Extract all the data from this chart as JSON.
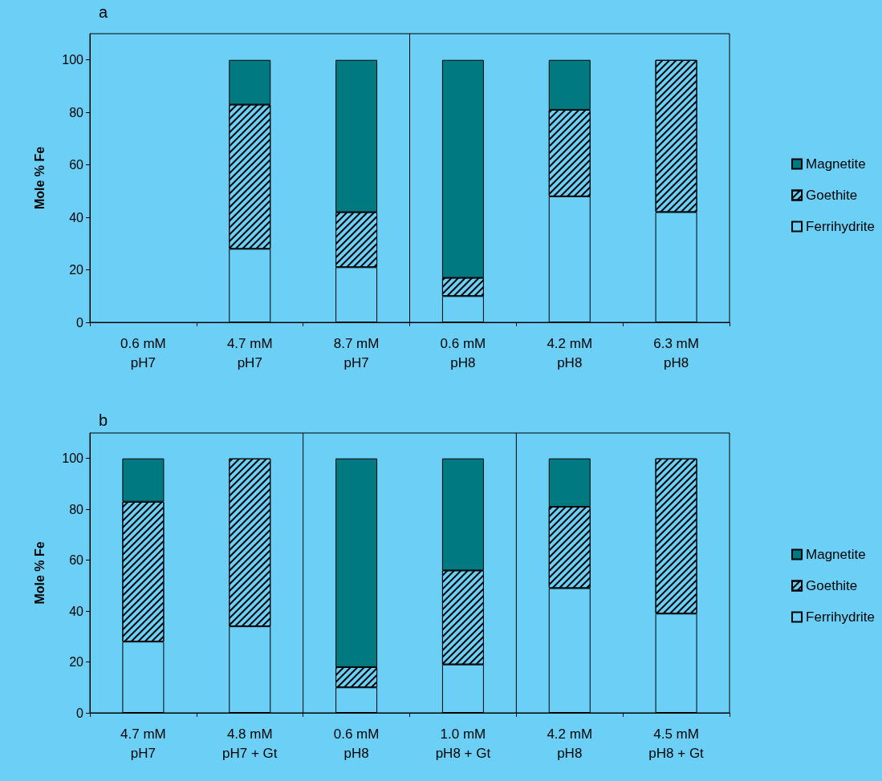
{
  "chart_data": [
    {
      "type": "bar",
      "title": "a",
      "ylabel": "Mole % Fe",
      "stacked": true,
      "legend": "right",
      "ylim": [
        0,
        110
      ],
      "yticks": [
        0,
        20,
        40,
        60,
        80,
        100
      ],
      "categories": [
        "0.6 mM\npH7",
        "4.7 mM\npH7",
        "8.7 mM\npH7",
        "0.6 mM\npH8",
        "4.2 mM\npH8",
        "6.3 mM\npH8"
      ],
      "series": [
        {
          "name": "Ferrihydrite",
          "color": "#6ccff6",
          "values": [
            0,
            28,
            21,
            10,
            48,
            42
          ]
        },
        {
          "name": "Goethite",
          "color": "#6ccff6",
          "values": [
            0,
            55,
            21,
            7,
            33,
            58
          ]
        },
        {
          "name": "Magnetite",
          "color": "#007a80",
          "values": [
            0,
            17,
            58,
            83,
            19,
            0
          ]
        }
      ]
    },
    {
      "type": "bar",
      "title": "b",
      "ylabel": "Mole % Fe",
      "stacked": true,
      "legend": "right",
      "ylim": [
        0,
        110
      ],
      "yticks": [
        0,
        20,
        40,
        60,
        80,
        100
      ],
      "categories": [
        "4.7 mM\npH7",
        "4.8 mM\npH7 + Gt",
        "0.6 mM\npH8",
        "1.0 mM\npH8 + Gt",
        "4.2 mM\npH8",
        "4.5 mM\npH8 + Gt"
      ],
      "series": [
        {
          "name": "Ferrihydrite",
          "color": "#6ccff6",
          "values": [
            28,
            34,
            10,
            19,
            49,
            39
          ]
        },
        {
          "name": "Goethite",
          "color": "#6ccff6",
          "values": [
            55,
            66,
            8,
            37,
            32,
            61
          ]
        },
        {
          "name": "Magnetite",
          "color": "#007a80",
          "values": [
            17,
            0,
            82,
            44,
            19,
            0
          ]
        }
      ]
    }
  ]
}
